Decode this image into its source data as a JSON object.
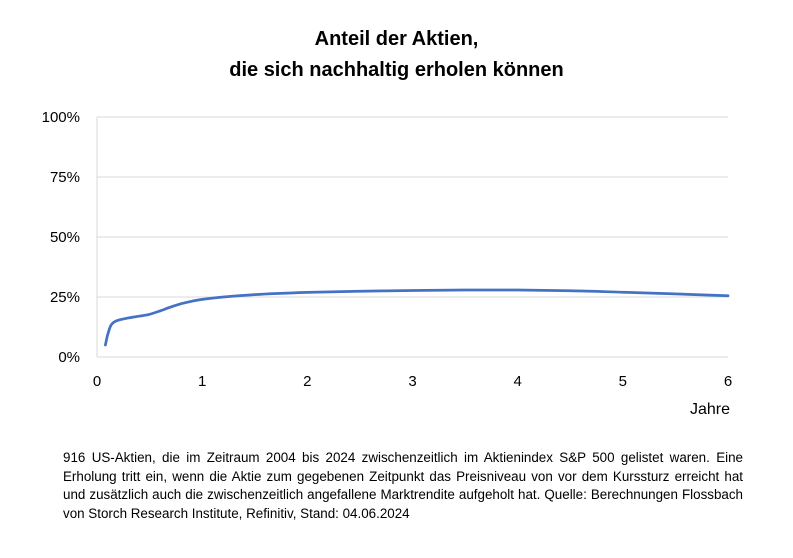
{
  "chart_data": {
    "type": "line",
    "title_lines": [
      "Anteil der Aktien,",
      "die sich nachhaltig erholen können"
    ],
    "xlabel": "Jahre",
    "ylabel": "",
    "xlim": [
      0,
      6
    ],
    "ylim": [
      0,
      100
    ],
    "x_ticks": [
      "0",
      "1",
      "2",
      "3",
      "4",
      "5",
      "6"
    ],
    "y_ticks": [
      "0%",
      "25%",
      "50%",
      "75%",
      "100%"
    ],
    "grid": "horizontal",
    "legend": "none",
    "series": [
      {
        "color": "#4472C4",
        "x": [
          0.08,
          0.1,
          0.13,
          0.16,
          0.2,
          0.3,
          0.4,
          0.5,
          0.6,
          0.7,
          0.8,
          0.9,
          1.0,
          1.2,
          1.5,
          2.0,
          2.5,
          3.0,
          3.5,
          4.0,
          4.5,
          5.0,
          5.5,
          6.0
        ],
        "y": [
          5,
          9,
          13,
          14.5,
          15.3,
          16.3,
          17,
          17.8,
          19.2,
          20.8,
          22.2,
          23.2,
          24,
          25,
          26,
          26.9,
          27.4,
          27.7,
          27.9,
          27.9,
          27.6,
          27,
          26.3,
          25.5
        ]
      }
    ]
  },
  "source_text": "916 US-Aktien, die im Zeitraum 2004 bis 2024 zwischenzeitlich im Aktienindex S&P 500 gelistet waren. Eine Erholung tritt ein, wenn die Aktie zum gegebenen Zeitpunkt das Preisniveau von vor dem Kurssturz erreicht hat und zusätzlich auch die zwischenzeitlich angefallene Marktrendite aufgeholt hat. Quelle: Berechnungen Flossbach von Storch Research Institute, Refinitiv, Stand: 04.06.2024"
}
